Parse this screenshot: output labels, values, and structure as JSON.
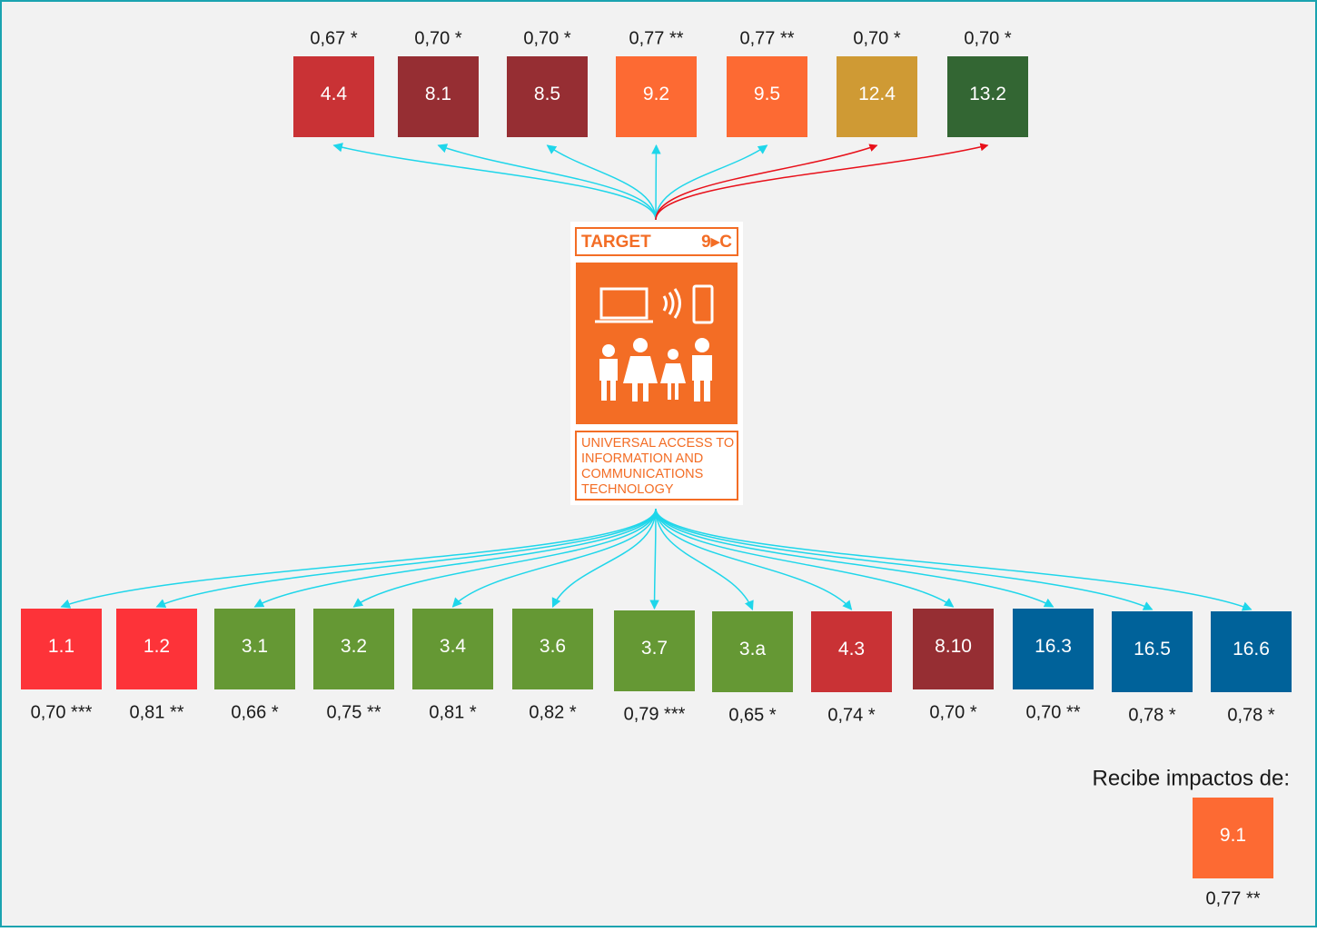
{
  "center": {
    "header": "TARGET",
    "code": "9▸C",
    "caption": [
      "UNIVERSAL ACCESS TO",
      "INFORMATION AND",
      "COMMUNICATIONS",
      "TECHNOLOGY"
    ]
  },
  "top": [
    {
      "label": "4.4",
      "score": "0,67 *",
      "color": "#c93235",
      "arrow_color": "#1fd6ea"
    },
    {
      "label": "8.1",
      "score": "0,70 *",
      "color": "#962e33",
      "arrow_color": "#1fd6ea"
    },
    {
      "label": "8.5",
      "score": "0,70 *",
      "color": "#962e33",
      "arrow_color": "#1fd6ea"
    },
    {
      "label": "9.2",
      "score": "0,77 **",
      "color": "#fd6a33",
      "arrow_color": "#1fd6ea"
    },
    {
      "label": "9.5",
      "score": "0,77 **",
      "color": "#fd6a33",
      "arrow_color": "#1fd6ea"
    },
    {
      "label": "12.4",
      "score": "0,70 *",
      "color": "#cf9a34",
      "arrow_color": "#e8101a"
    },
    {
      "label": "13.2",
      "score": "0,70 *",
      "color": "#336633",
      "arrow_color": "#e8101a"
    }
  ],
  "bottom": [
    {
      "label": "1.1",
      "score": "0,70 ***",
      "color": "#fd3339",
      "arrow_color": "#1fd6ea"
    },
    {
      "label": "1.2",
      "score": "0,81 **",
      "color": "#fd3339",
      "arrow_color": "#1fd6ea"
    },
    {
      "label": "3.1",
      "score": "0,66 *",
      "color": "#659834",
      "arrow_color": "#1fd6ea"
    },
    {
      "label": "3.2",
      "score": "0,75 **",
      "color": "#659834",
      "arrow_color": "#1fd6ea"
    },
    {
      "label": "3.4",
      "score": "0,81 *",
      "color": "#659834",
      "arrow_color": "#1fd6ea"
    },
    {
      "label": "3.6",
      "score": "0,82 *",
      "color": "#659834",
      "arrow_color": "#1fd6ea"
    },
    {
      "label": "3.7",
      "score": "0,79 ***",
      "color": "#659834",
      "arrow_color": "#1fd6ea"
    },
    {
      "label": "3.a",
      "score": "0,65 *",
      "color": "#659834",
      "arrow_color": "#1fd6ea"
    },
    {
      "label": "4.3",
      "score": "0,74 *",
      "color": "#c93235",
      "arrow_color": "#1fd6ea"
    },
    {
      "label": "8.10",
      "score": "0,70 *",
      "color": "#962e33",
      "arrow_color": "#1fd6ea"
    },
    {
      "label": "16.3",
      "score": "0,70 **",
      "color": "#00629a",
      "arrow_color": "#1fd6ea"
    },
    {
      "label": "16.5",
      "score": "0,78 *",
      "color": "#00629a",
      "arrow_color": "#1fd6ea"
    },
    {
      "label": "16.6",
      "score": "0,78 *",
      "color": "#00629a",
      "arrow_color": "#1fd6ea"
    }
  ],
  "receives": {
    "title": "Recibe impactos de:",
    "nodes": [
      {
        "label": "9.1",
        "score": "0,77 **",
        "color": "#fd6a33"
      }
    ]
  }
}
